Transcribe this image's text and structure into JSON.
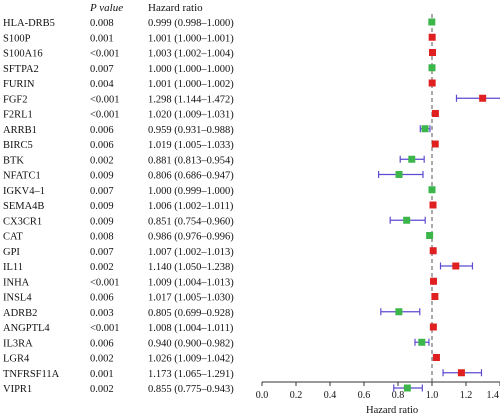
{
  "chart_data": {
    "type": "forest",
    "columns": {
      "gene": "",
      "pvalue": "P value",
      "hr": "Hazard ratio"
    },
    "xlabel": "Hazard ratio",
    "xlim": [
      0.0,
      1.4
    ],
    "xticks": [
      "0.0",
      "0.2",
      "0.4",
      "0.6",
      "0.8",
      "1.0",
      "1.2",
      "1.4"
    ],
    "reference_line": 1.0,
    "colors": {
      "risk": "#e02020",
      "protective": "#3cb54a",
      "ci": "#5b4bd0"
    },
    "rows": [
      {
        "gene": "HLA-DRB5",
        "p": "0.008",
        "hr_text": "0.999 (0.998–1.000)",
        "hr": 0.999,
        "lo": 0.998,
        "hi": 1.0,
        "group": "protective"
      },
      {
        "gene": "S100P",
        "p": "0.001",
        "hr_text": "1.001 (1.000–1.001)",
        "hr": 1.001,
        "lo": 1.0,
        "hi": 1.001,
        "group": "risk"
      },
      {
        "gene": "S100A16",
        "p": "<0.001",
        "hr_text": "1.003 (1.002–1.004)",
        "hr": 1.003,
        "lo": 1.002,
        "hi": 1.004,
        "group": "risk"
      },
      {
        "gene": "SFTPA2",
        "p": "0.007",
        "hr_text": "1.000 (1.000–1.000)",
        "hr": 1.0,
        "lo": 1.0,
        "hi": 1.0,
        "group": "protective"
      },
      {
        "gene": "FURIN",
        "p": "0.004",
        "hr_text": "1.001 (1.000–1.002)",
        "hr": 1.001,
        "lo": 1.0,
        "hi": 1.002,
        "group": "risk"
      },
      {
        "gene": "FGF2",
        "p": "<0.001",
        "hr_text": "1.298 (1.144–1.472)",
        "hr": 1.298,
        "lo": 1.144,
        "hi": 1.472,
        "group": "risk"
      },
      {
        "gene": "F2RL1",
        "p": "<0.001",
        "hr_text": "1.020 (1.009–1.031)",
        "hr": 1.02,
        "lo": 1.009,
        "hi": 1.031,
        "group": "risk"
      },
      {
        "gene": "ARRB1",
        "p": "0.006",
        "hr_text": "0.959 (0.931–0.988)",
        "hr": 0.959,
        "lo": 0.931,
        "hi": 0.988,
        "group": "protective"
      },
      {
        "gene": "BIRC5",
        "p": "0.006",
        "hr_text": "1.019 (1.005–1.033)",
        "hr": 1.019,
        "lo": 1.005,
        "hi": 1.033,
        "group": "risk"
      },
      {
        "gene": "BTK",
        "p": "0.002",
        "hr_text": "0.881 (0.813–0.954)",
        "hr": 0.881,
        "lo": 0.813,
        "hi": 0.954,
        "group": "protective"
      },
      {
        "gene": "NFATC1",
        "p": "0.009",
        "hr_text": "0.806 (0.686–0.947)",
        "hr": 0.806,
        "lo": 0.686,
        "hi": 0.947,
        "group": "protective"
      },
      {
        "gene": "IGKV4–1",
        "p": "0.007",
        "hr_text": "1.000 (0.999–1.000)",
        "hr": 1.0,
        "lo": 0.999,
        "hi": 1.0,
        "group": "protective"
      },
      {
        "gene": "SEMA4B",
        "p": "0.009",
        "hr_text": "1.006 (1.002–1.011)",
        "hr": 1.006,
        "lo": 1.002,
        "hi": 1.011,
        "group": "risk"
      },
      {
        "gene": "CX3CR1",
        "p": "0.009",
        "hr_text": "0.851 (0.754–0.960)",
        "hr": 0.851,
        "lo": 0.754,
        "hi": 0.96,
        "group": "protective"
      },
      {
        "gene": "CAT",
        "p": "0.008",
        "hr_text": "0.986 (0.976–0.996)",
        "hr": 0.986,
        "lo": 0.976,
        "hi": 0.996,
        "group": "protective"
      },
      {
        "gene": "GPI",
        "p": "0.007",
        "hr_text": "1.007 (1.002–1.013)",
        "hr": 1.007,
        "lo": 1.002,
        "hi": 1.013,
        "group": "risk"
      },
      {
        "gene": "IL11",
        "p": "0.002",
        "hr_text": "1.140 (1.050–1.238)",
        "hr": 1.14,
        "lo": 1.05,
        "hi": 1.238,
        "group": "risk"
      },
      {
        "gene": "INHA",
        "p": "<0.001",
        "hr_text": "1.009 (1.004–1.013)",
        "hr": 1.009,
        "lo": 1.004,
        "hi": 1.013,
        "group": "risk"
      },
      {
        "gene": "INSL4",
        "p": "0.006",
        "hr_text": "1.017 (1.005–1.030)",
        "hr": 1.017,
        "lo": 1.005,
        "hi": 1.03,
        "group": "risk"
      },
      {
        "gene": "ADRB2",
        "p": "0.003",
        "hr_text": "0.805 (0.699–0.928)",
        "hr": 0.805,
        "lo": 0.699,
        "hi": 0.928,
        "group": "protective"
      },
      {
        "gene": "ANGPTL4",
        "p": "<0.001",
        "hr_text": "1.008 (1.004–1.011)",
        "hr": 1.008,
        "lo": 1.004,
        "hi": 1.011,
        "group": "risk"
      },
      {
        "gene": "IL3RA",
        "p": "0.006",
        "hr_text": "0.940 (0.900–0.982)",
        "hr": 0.94,
        "lo": 0.9,
        "hi": 0.982,
        "group": "protective"
      },
      {
        "gene": "LGR4",
        "p": "0.002",
        "hr_text": "1.026 (1.009–1.042)",
        "hr": 1.026,
        "lo": 1.009,
        "hi": 1.042,
        "group": "risk"
      },
      {
        "gene": "TNFRSF11A",
        "p": "0.001",
        "hr_text": "1.173 (1.065–1.291)",
        "hr": 1.173,
        "lo": 1.065,
        "hi": 1.291,
        "group": "risk"
      },
      {
        "gene": "VIPR1",
        "p": "0.002",
        "hr_text": "0.855 (0.775–0.943)",
        "hr": 0.855,
        "lo": 0.775,
        "hi": 0.943,
        "group": "protective"
      }
    ]
  }
}
